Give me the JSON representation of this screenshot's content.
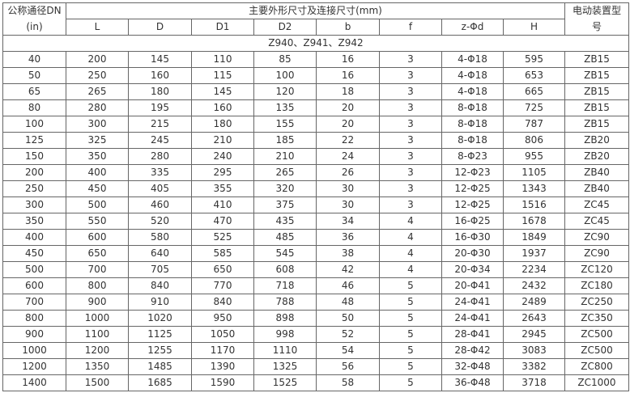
{
  "header": {
    "dn_label": "公称通径DN",
    "dn_unit": "(in)",
    "group_label": "主要外形尺寸及连接尺寸(mm)",
    "actuator_label_1": "电动装置型",
    "actuator_label_2": "号",
    "columns": [
      "L",
      "D",
      "D1",
      "D2",
      "b",
      "f",
      "z-Φd",
      "H"
    ]
  },
  "model_row": "Z940、Z941、Z942",
  "rows": [
    [
      "40",
      "200",
      "145",
      "110",
      "85",
      "16",
      "3",
      "4-Φ18",
      "595",
      "ZB15"
    ],
    [
      "50",
      "250",
      "160",
      "115",
      "100",
      "16",
      "3",
      "4-Φ18",
      "653",
      "ZB15"
    ],
    [
      "65",
      "265",
      "180",
      "145",
      "120",
      "18",
      "3",
      "4-Φ18",
      "665",
      "ZB15"
    ],
    [
      "80",
      "280",
      "195",
      "160",
      "135",
      "20",
      "3",
      "8-Φ18",
      "725",
      "ZB15"
    ],
    [
      "100",
      "300",
      "215",
      "180",
      "155",
      "20",
      "3",
      "8-Φ18",
      "787",
      "ZB15"
    ],
    [
      "125",
      "325",
      "245",
      "210",
      "185",
      "22",
      "3",
      "8-Φ18",
      "806",
      "ZB20"
    ],
    [
      "150",
      "350",
      "280",
      "240",
      "210",
      "24",
      "3",
      "8-Φ23",
      "955",
      "ZB20"
    ],
    [
      "200",
      "400",
      "335",
      "295",
      "265",
      "26",
      "3",
      "12-Φ23",
      "1105",
      "ZB40"
    ],
    [
      "250",
      "450",
      "405",
      "355",
      "320",
      "30",
      "3",
      "12-Φ25",
      "1343",
      "ZB40"
    ],
    [
      "300",
      "500",
      "460",
      "410",
      "375",
      "30",
      "3",
      "12-Φ25",
      "1516",
      "ZC45"
    ],
    [
      "350",
      "550",
      "520",
      "470",
      "435",
      "34",
      "4",
      "16-Φ25",
      "1678",
      "ZC45"
    ],
    [
      "400",
      "600",
      "580",
      "525",
      "485",
      "36",
      "4",
      "16-Φ30",
      "1849",
      "ZC90"
    ],
    [
      "450",
      "650",
      "640",
      "585",
      "545",
      "38",
      "4",
      "20-Φ30",
      "1937",
      "ZC90"
    ],
    [
      "500",
      "700",
      "705",
      "650",
      "608",
      "42",
      "4",
      "20-Φ34",
      "2234",
      "ZC120"
    ],
    [
      "600",
      "800",
      "840",
      "770",
      "718",
      "46",
      "5",
      "20-Φ41",
      "2432",
      "ZC180"
    ],
    [
      "700",
      "900",
      "910",
      "840",
      "788",
      "48",
      "5",
      "24-Φ41",
      "2489",
      "ZC250"
    ],
    [
      "800",
      "1000",
      "1020",
      "950",
      "898",
      "50",
      "5",
      "24-Φ41",
      "2643",
      "ZC350"
    ],
    [
      "900",
      "1100",
      "1125",
      "1050",
      "998",
      "52",
      "5",
      "28-Φ41",
      "2945",
      "ZC500"
    ],
    [
      "1000",
      "1200",
      "1255",
      "1170",
      "1110",
      "54",
      "5",
      "28-Φ42",
      "3083",
      "ZC500"
    ],
    [
      "1200",
      "1350",
      "1485",
      "1390",
      "1325",
      "56",
      "5",
      "32-Φ48",
      "3382",
      "ZC800"
    ],
    [
      "1400",
      "1500",
      "1685",
      "1590",
      "1525",
      "58",
      "5",
      "36-Φ48",
      "3718",
      "ZC1000"
    ]
  ]
}
